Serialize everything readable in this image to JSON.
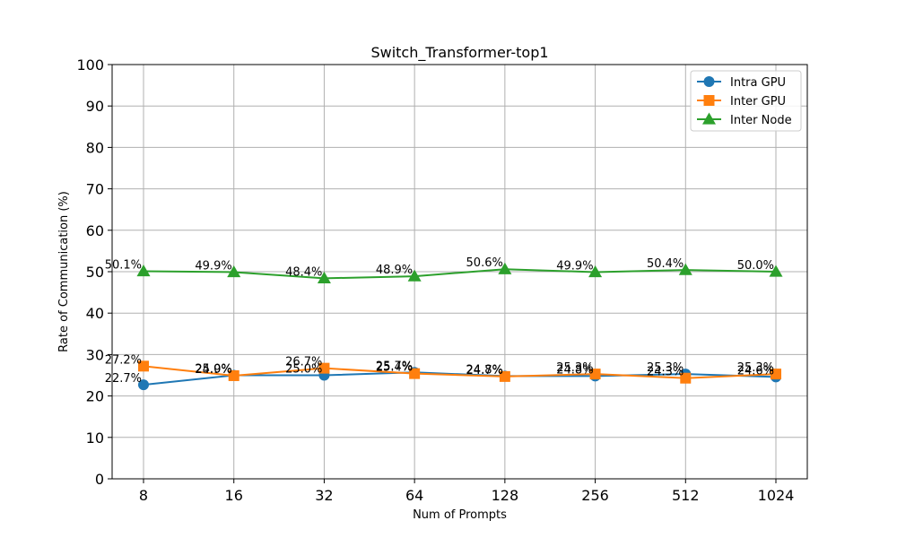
{
  "chart_data": {
    "type": "line",
    "title": "Switch_Transformer-top1",
    "xlabel": "Num of Prompts",
    "ylabel": "Rate of Communication (%)",
    "categories": [
      "8",
      "16",
      "32",
      "64",
      "128",
      "256",
      "512",
      "1024"
    ],
    "ylim": [
      0,
      100
    ],
    "yticks": [
      0,
      10,
      20,
      30,
      40,
      50,
      60,
      70,
      80,
      90,
      100
    ],
    "grid": true,
    "legend_position": "top-right",
    "series": [
      {
        "name": "Intra GPU",
        "color": "#1f77b4",
        "marker": "circle",
        "values": [
          22.7,
          25.0,
          25.0,
          25.7,
          24.8,
          24.8,
          25.3,
          24.6
        ],
        "labels": [
          "22.7%",
          "25.0%",
          "25.0%",
          "25.7%",
          "24.8%",
          "24.8%",
          "25.3%",
          "24.6%"
        ]
      },
      {
        "name": "Inter GPU",
        "color": "#ff7f0e",
        "marker": "square",
        "values": [
          27.2,
          24.9,
          26.7,
          25.4,
          24.7,
          25.3,
          24.3,
          25.3
        ],
        "labels": [
          "27.2%",
          "24.9%",
          "26.7%",
          "25.4%",
          "24.7%",
          "25.3%",
          "24.3%",
          "25.3%"
        ]
      },
      {
        "name": "Inter Node",
        "color": "#2ca02c",
        "marker": "triangle",
        "values": [
          50.1,
          49.9,
          48.4,
          48.9,
          50.6,
          49.9,
          50.4,
          50.0
        ],
        "labels": [
          "50.1%",
          "49.9%",
          "48.4%",
          "48.9%",
          "50.6%",
          "49.9%",
          "50.4%",
          "50.0%"
        ]
      }
    ]
  }
}
